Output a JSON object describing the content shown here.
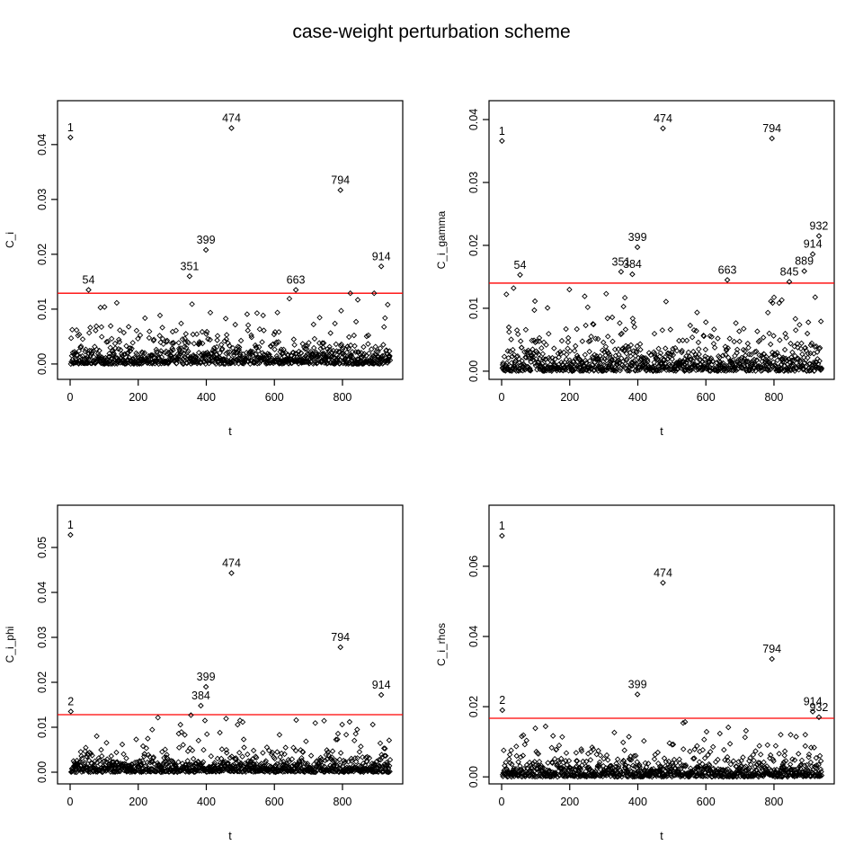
{
  "title": "case-weight perturbation scheme",
  "colors": {
    "threshold_line": "#ff0000",
    "points": "#000000",
    "axis": "#000000"
  },
  "chart_data": [
    {
      "type": "scatter",
      "panel": "top-left",
      "xlabel": "t",
      "ylabel": "C_i",
      "x_ticks": [
        0,
        200,
        400,
        600,
        800
      ],
      "y_ticks": [
        0.0,
        0.01,
        0.02,
        0.03,
        0.04
      ],
      "y_tick_labels": [
        "0.00",
        "0.01",
        "0.02",
        "0.03",
        "0.04"
      ],
      "xlim": [
        -37,
        977
      ],
      "ylim": [
        -0.0028,
        0.048
      ],
      "threshold": 0.0129,
      "labeled_points": [
        {
          "label": "1",
          "t": 1,
          "y": 0.0413
        },
        {
          "label": "54",
          "t": 54,
          "y": 0.0135
        },
        {
          "label": "351",
          "t": 351,
          "y": 0.016
        },
        {
          "label": "399",
          "t": 399,
          "y": 0.0208
        },
        {
          "label": "474",
          "t": 474,
          "y": 0.043
        },
        {
          "label": "663",
          "t": 663,
          "y": 0.0135
        },
        {
          "label": "794",
          "t": 794,
          "y": 0.0317
        },
        {
          "label": "914",
          "t": 914,
          "y": 0.0178
        }
      ],
      "extra_points": [
        {
          "t": 823,
          "y": 0.0129
        },
        {
          "t": 845,
          "y": 0.0117
        },
        {
          "t": 893,
          "y": 0.0129
        }
      ],
      "background": {
        "n": 940,
        "seed": 1,
        "base_scale_frac": 0.092,
        "tail_scale_frac": 0.31,
        "tail_prob": 0.2
      }
    },
    {
      "type": "scatter",
      "panel": "top-right",
      "xlabel": "t",
      "ylabel": "C_i_gamma",
      "x_ticks": [
        0,
        200,
        400,
        600,
        800
      ],
      "y_ticks": [
        0.0,
        0.01,
        0.02,
        0.03,
        0.04
      ],
      "y_tick_labels": [
        "0.00",
        "0.01",
        "0.02",
        "0.03",
        "0.04"
      ],
      "xlim": [
        -37,
        977
      ],
      "ylim": [
        -0.0013,
        0.043
      ],
      "threshold": 0.014,
      "labeled_points": [
        {
          "label": "1",
          "t": 1,
          "y": 0.0366
        },
        {
          "label": "54",
          "t": 54,
          "y": 0.0153
        },
        {
          "label": "351",
          "t": 351,
          "y": 0.0158
        },
        {
          "label": "384",
          "t": 384,
          "y": 0.0154
        },
        {
          "label": "399",
          "t": 399,
          "y": 0.0197
        },
        {
          "label": "474",
          "t": 474,
          "y": 0.0386
        },
        {
          "label": "663",
          "t": 663,
          "y": 0.0145
        },
        {
          "label": "794",
          "t": 794,
          "y": 0.037
        },
        {
          "label": "845",
          "t": 845,
          "y": 0.0142
        },
        {
          "label": "889",
          "t": 889,
          "y": 0.0159
        },
        {
          "label": "914",
          "t": 914,
          "y": 0.0186
        },
        {
          "label": "932",
          "t": 932,
          "y": 0.0215
        }
      ],
      "extra_points": [
        {
          "t": 823,
          "y": 0.0113
        },
        {
          "t": 307,
          "y": 0.0123
        }
      ],
      "background": {
        "n": 940,
        "seed": 2,
        "base_scale_frac": 0.092,
        "tail_scale_frac": 0.31,
        "tail_prob": 0.2
      }
    },
    {
      "type": "scatter",
      "panel": "bottom-left",
      "xlabel": "t",
      "ylabel": "C_i_phi",
      "x_ticks": [
        0,
        200,
        400,
        600,
        800
      ],
      "y_ticks": [
        0.0,
        0.01,
        0.02,
        0.03,
        0.04,
        0.05
      ],
      "y_tick_labels": [
        "0.00",
        "0.01",
        "0.02",
        "0.03",
        "0.04",
        "0.05"
      ],
      "xlim": [
        -37,
        977
      ],
      "ylim": [
        -0.0026,
        0.0594
      ],
      "threshold": 0.0128,
      "labeled_points": [
        {
          "label": "1",
          "t": 1,
          "y": 0.0528
        },
        {
          "label": "2",
          "t": 2,
          "y": 0.0135
        },
        {
          "label": "384",
          "t": 384,
          "y": 0.0148
        },
        {
          "label": "399",
          "t": 399,
          "y": 0.019
        },
        {
          "label": "474",
          "t": 474,
          "y": 0.0443
        },
        {
          "label": "794",
          "t": 794,
          "y": 0.0278
        },
        {
          "label": "914",
          "t": 914,
          "y": 0.0172
        }
      ],
      "extra_points": [
        {
          "t": 355,
          "y": 0.0127
        },
        {
          "t": 664,
          "y": 0.0116
        },
        {
          "t": 821,
          "y": 0.0112
        },
        {
          "t": 889,
          "y": 0.0106
        },
        {
          "t": 843,
          "y": 0.0095
        }
      ],
      "background": {
        "n": 940,
        "seed": 3,
        "base_scale_frac": 0.092,
        "tail_scale_frac": 0.31,
        "tail_prob": 0.2
      }
    },
    {
      "type": "scatter",
      "panel": "bottom-right",
      "xlabel": "t",
      "ylabel": "C_i_rhos",
      "x_ticks": [
        0,
        200,
        400,
        600,
        800
      ],
      "y_ticks": [
        0.0,
        0.02,
        0.04,
        0.06
      ],
      "y_tick_labels": [
        "0.00",
        "0.02",
        "0.04",
        "0.06"
      ],
      "xlim": [
        -37,
        977
      ],
      "ylim": [
        -0.002,
        0.0774
      ],
      "threshold": 0.0167,
      "labeled_points": [
        {
          "label": "1",
          "t": 1,
          "y": 0.0687
        },
        {
          "label": "2",
          "t": 2,
          "y": 0.019
        },
        {
          "label": "399",
          "t": 399,
          "y": 0.0235
        },
        {
          "label": "474",
          "t": 474,
          "y": 0.0553
        },
        {
          "label": "794",
          "t": 794,
          "y": 0.0336
        },
        {
          "label": "914",
          "t": 914,
          "y": 0.0186
        },
        {
          "label": "932",
          "t": 932,
          "y": 0.017
        }
      ],
      "extra_points": [
        {
          "t": 666,
          "y": 0.0141
        },
        {
          "t": 820,
          "y": 0.012
        },
        {
          "t": 849,
          "y": 0.012
        },
        {
          "t": 892,
          "y": 0.012
        }
      ],
      "background": {
        "n": 940,
        "seed": 4,
        "base_scale_frac": 0.092,
        "tail_scale_frac": 0.31,
        "tail_prob": 0.2
      }
    }
  ]
}
